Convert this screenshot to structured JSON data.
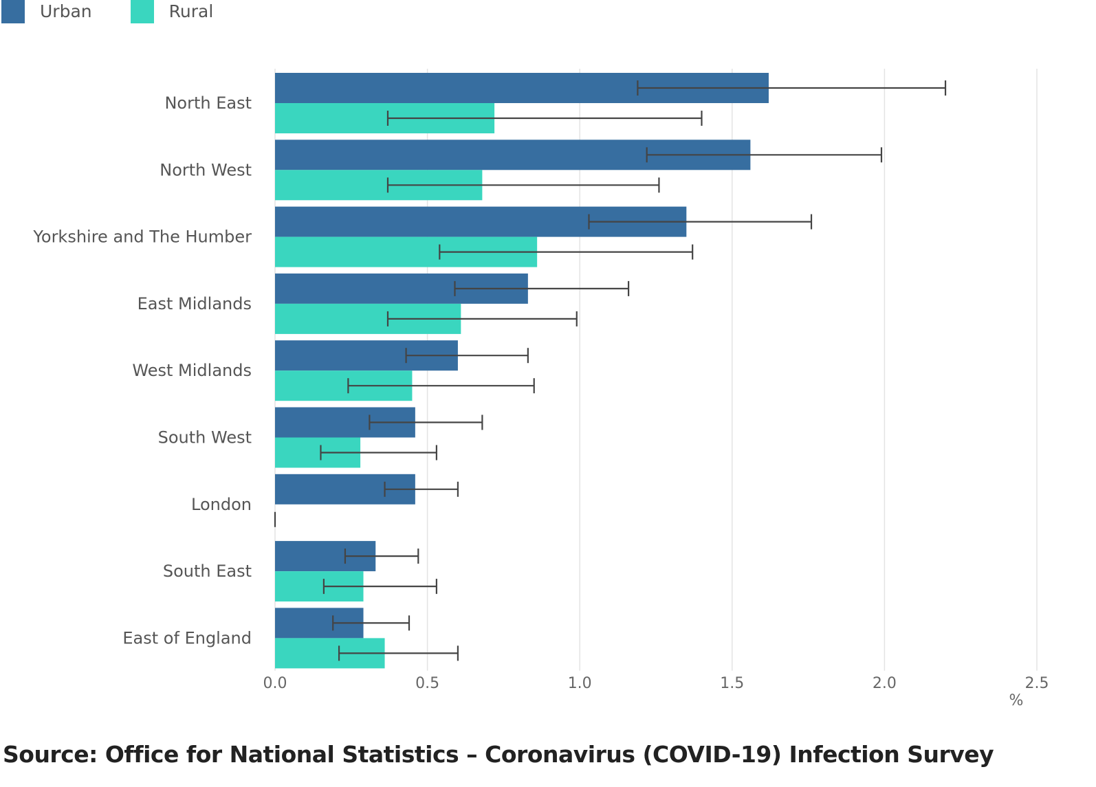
{
  "legend": {
    "items": [
      {
        "label": "Urban",
        "color": "#376ea0"
      },
      {
        "label": "Rural",
        "color": "#3ad6bf"
      }
    ]
  },
  "source": "Source: Office for National Statistics – Coronavirus (COVID-19) Infection Survey",
  "chart_data": {
    "type": "bar",
    "orientation": "horizontal",
    "title": "",
    "xlabel": "%",
    "ylabel": "",
    "xlim": [
      0,
      2.5
    ],
    "xticks": [
      0.0,
      0.5,
      1.0,
      1.5,
      2.0,
      2.5
    ],
    "xtick_labels": [
      "0.0",
      "0.5",
      "1.0",
      "1.5",
      "2.0",
      "2.5"
    ],
    "grid": "vertical",
    "legend_position": "top-left",
    "error_bars": true,
    "categories": [
      "North East",
      "North West",
      "Yorkshire and The Humber",
      "East Midlands",
      "West Midlands",
      "South West",
      "London",
      "South East",
      "East of England"
    ],
    "series": [
      {
        "name": "Urban",
        "color": "#376ea0",
        "values": [
          1.62,
          1.56,
          1.35,
          0.83,
          0.6,
          0.46,
          0.46,
          0.33,
          0.29
        ],
        "lower": [
          1.19,
          1.22,
          1.03,
          0.59,
          0.43,
          0.31,
          0.36,
          0.23,
          0.19
        ],
        "upper": [
          2.2,
          1.99,
          1.76,
          1.16,
          0.83,
          0.68,
          0.6,
          0.47,
          0.44
        ]
      },
      {
        "name": "Rural",
        "color": "#3ad6bf",
        "values": [
          0.72,
          0.68,
          0.86,
          0.61,
          0.45,
          0.28,
          0,
          0.29,
          0.36
        ],
        "lower": [
          0.37,
          0.37,
          0.54,
          0.37,
          0.24,
          0.15,
          0,
          0.16,
          0.21
        ],
        "upper": [
          1.4,
          1.26,
          1.37,
          0.99,
          0.85,
          0.53,
          0,
          0.53,
          0.6
        ]
      }
    ]
  }
}
